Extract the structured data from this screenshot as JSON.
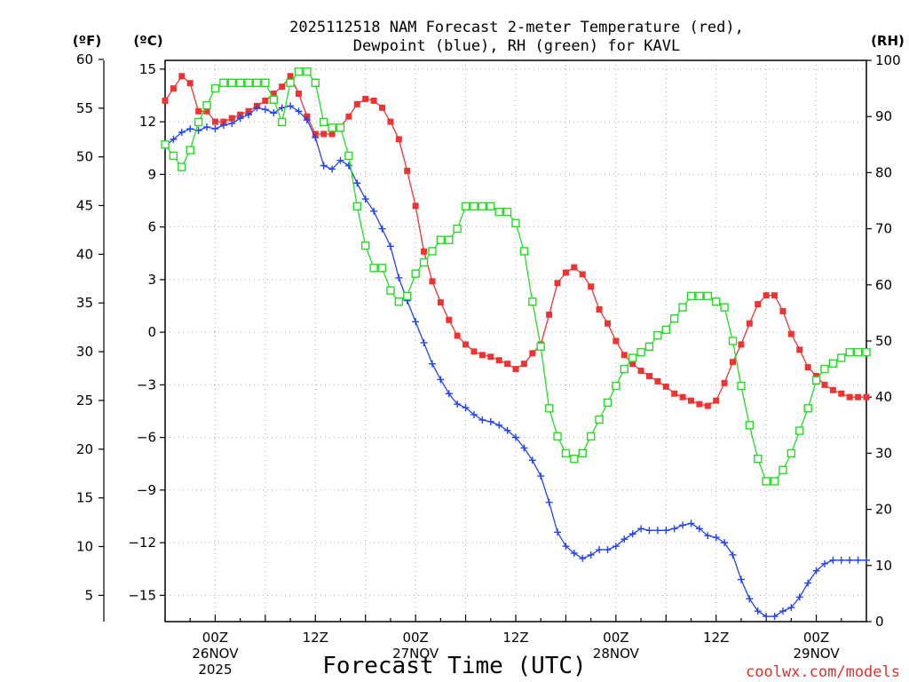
{
  "chart_data": {
    "type": "line",
    "title": [
      "2025112518 NAM Forecast 2-meter Temperature (red),",
      "Dewpoint (blue), RH (green) for KAVL"
    ],
    "xlabel": "Forecast Time (UTC)",
    "credit": "coolwx.com/models",
    "x_unit": "hours since 2025-11-25 18Z",
    "xlim": [
      0,
      84
    ],
    "x_ticks": [
      {
        "hour": 6,
        "lines": [
          "00Z",
          "26NOV",
          "2025"
        ]
      },
      {
        "hour": 18,
        "lines": [
          "12Z"
        ]
      },
      {
        "hour": 30,
        "lines": [
          "00Z",
          "27NOV"
        ]
      },
      {
        "hour": 42,
        "lines": [
          "12Z"
        ]
      },
      {
        "hour": 54,
        "lines": [
          "00Z",
          "28NOV"
        ]
      },
      {
        "hour": 66,
        "lines": [
          "12Z"
        ]
      },
      {
        "hour": 78,
        "lines": [
          "00Z",
          "29NOV"
        ]
      }
    ],
    "axes": {
      "fahrenheit": {
        "unit_label": "(ºF)",
        "ticks": [
          5,
          10,
          15,
          20,
          25,
          30,
          35,
          40,
          45,
          50,
          55,
          60
        ]
      },
      "celsius": {
        "unit_label": "(ºC)",
        "ylim": [
          -16.5,
          15.5
        ],
        "ticks": [
          15,
          12,
          9,
          6,
          3,
          0,
          -3,
          -6,
          -9,
          -12,
          -15
        ]
      },
      "rh": {
        "unit_label": "(RH)",
        "ylim": [
          0,
          100
        ],
        "ticks": [
          100,
          90,
          80,
          70,
          60,
          50,
          40,
          30,
          20,
          10,
          0
        ]
      }
    },
    "series": [
      {
        "name": "Temperature",
        "units": "C",
        "color": "#ee3333",
        "marker": "filled-square",
        "values": [
          13.2,
          13.9,
          14.6,
          14.2,
          12.6,
          12.6,
          12.0,
          12.0,
          12.2,
          12.4,
          12.6,
          12.9,
          13.2,
          13.6,
          14.0,
          14.6,
          13.6,
          12.3,
          11.3,
          11.3,
          11.3,
          11.7,
          12.3,
          13.0,
          13.3,
          13.2,
          12.8,
          12.0,
          11.0,
          9.2,
          7.2,
          4.6,
          2.9,
          1.7,
          0.7,
          -0.2,
          -0.7,
          -1.1,
          -1.3,
          -1.4,
          -1.6,
          -1.8,
          -2.1,
          -1.8,
          -1.2,
          -0.7,
          1.0,
          2.8,
          3.4,
          3.7,
          3.3,
          2.6,
          1.3,
          0.5,
          -0.5,
          -1.3,
          -1.8,
          -2.2,
          -2.5,
          -2.8,
          -3.1,
          -3.5,
          -3.7,
          -3.9,
          -4.1,
          -4.2,
          -3.9,
          -2.9,
          -1.7,
          -0.7,
          0.5,
          1.6,
          2.1,
          2.1,
          1.2,
          -0.1,
          -1.0,
          -2.0,
          -2.5,
          -3.0,
          -3.3,
          -3.5,
          -3.7,
          -3.7,
          -3.7
        ]
      },
      {
        "name": "Dewpoint",
        "units": "C",
        "color": "#2244ee",
        "marker": "plus",
        "values": [
          10.6,
          11.0,
          11.4,
          11.6,
          11.5,
          11.7,
          11.6,
          11.8,
          11.9,
          12.2,
          12.4,
          12.8,
          12.7,
          12.5,
          12.8,
          12.9,
          12.6,
          12.1,
          11.1,
          9.5,
          9.3,
          9.8,
          9.5,
          8.5,
          7.6,
          6.9,
          5.9,
          4.9,
          3.1,
          1.8,
          0.6,
          -0.6,
          -1.8,
          -2.7,
          -3.5,
          -4.1,
          -4.3,
          -4.7,
          -5.0,
          -5.1,
          -5.3,
          -5.6,
          -6.0,
          -6.6,
          -7.3,
          -8.2,
          -9.7,
          -11.4,
          -12.2,
          -12.6,
          -12.9,
          -12.7,
          -12.4,
          -12.4,
          -12.2,
          -11.8,
          -11.5,
          -11.2,
          -11.3,
          -11.3,
          -11.3,
          -11.2,
          -11.0,
          -10.9,
          -11.2,
          -11.6,
          -11.7,
          -12.0,
          -12.7,
          -14.1,
          -15.2,
          -15.9,
          -16.2,
          -16.2,
          -15.9,
          -15.7,
          -15.1,
          -14.3,
          -13.6,
          -13.2,
          -13.0,
          -13.0,
          -13.0,
          -13.0,
          -13.0
        ]
      },
      {
        "name": "RH",
        "units": "%",
        "color": "#22dd22",
        "marker": "open-square",
        "values": [
          85,
          83,
          81,
          84,
          89,
          92,
          95,
          96,
          96,
          96,
          96,
          96,
          96,
          93,
          89,
          96,
          98,
          98,
          96,
          89,
          88,
          88,
          83,
          74,
          67,
          63,
          63,
          59,
          57,
          58,
          62,
          64,
          66,
          68,
          68,
          70,
          74,
          74,
          74,
          74,
          73,
          73,
          71,
          66,
          57,
          49,
          38,
          33,
          30,
          29,
          30,
          33,
          36,
          39,
          42,
          45,
          47,
          48,
          49,
          51,
          52,
          54,
          56,
          58,
          58,
          58,
          57,
          56,
          50,
          42,
          35,
          29,
          25,
          25,
          27,
          30,
          34,
          38,
          43,
          45,
          46,
          47,
          48,
          48,
          48
        ]
      }
    ]
  }
}
